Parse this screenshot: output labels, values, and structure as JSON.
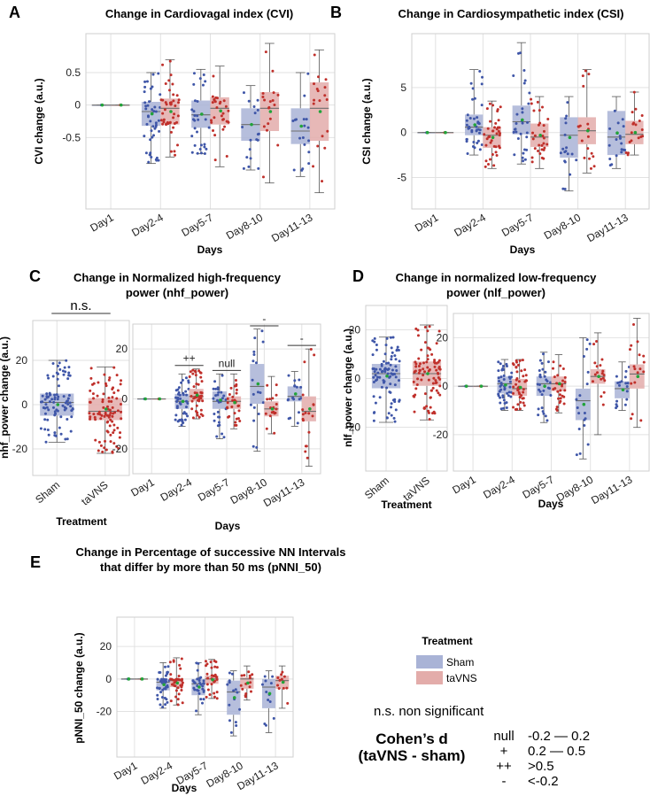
{
  "colors": {
    "sham": "#a9b3d6",
    "tavns": "#e3acaa",
    "sham_dot": "#3f56a8",
    "tavns_dot": "#c0302b",
    "median": "#6d6d6d",
    "mean": "#22a33a"
  },
  "legend": {
    "title": "Treatment",
    "items": [
      "Sham",
      "taVNS"
    ]
  },
  "notes": {
    "ns": "n.s. non significant",
    "cohen_title_1": "Cohen’s d",
    "cohen_title_2": "(taVNS - sham)",
    "rows": [
      {
        "sym": "null",
        "range": "-0.2 — 0.2"
      },
      {
        "sym": "+",
        "range": "0.2 — 0.5"
      },
      {
        "sym": "++",
        "range": ">0.5"
      },
      {
        "sym": "-",
        "range": "<-0.2"
      }
    ]
  },
  "chart_data": [
    {
      "id": "A",
      "letter": "A",
      "type": "box",
      "title_lines": [
        "Change in Cardiovagal index (CVI)"
      ],
      "ylabel": "CVI change (a.u.)",
      "xlabel": "Days",
      "ylim": [
        -1.6,
        1.1
      ],
      "yticks": [
        -0.5,
        0,
        0.5
      ],
      "yticklabels": [
        "-0.5",
        "0",
        "0.5"
      ],
      "categories": [
        "Day1",
        "Day2-4",
        "Day5-7",
        "Day8-10",
        "Day11-13"
      ],
      "series": [
        {
          "name": "Sham",
          "boxes": [
            [
              0,
              0,
              0,
              0,
              0
            ],
            [
              -0.9,
              -0.32,
              -0.1,
              0.05,
              0.5
            ],
            [
              -0.75,
              -0.35,
              -0.15,
              0.07,
              0.55
            ],
            [
              -1.0,
              -0.55,
              -0.3,
              -0.05,
              0.3
            ],
            [
              -1.1,
              -0.6,
              -0.4,
              -0.05,
              0.5
            ]
          ],
          "n": [
            1,
            45,
            30,
            18,
            18
          ]
        },
        {
          "name": "taVNS",
          "boxes": [
            [
              0,
              0,
              0,
              0,
              0
            ],
            [
              -0.8,
              -0.3,
              -0.05,
              0.1,
              0.7
            ],
            [
              -0.95,
              -0.3,
              -0.05,
              0.12,
              0.6
            ],
            [
              -1.2,
              -0.4,
              -0.05,
              0.2,
              0.95
            ],
            [
              -1.35,
              -0.55,
              -0.05,
              0.35,
              0.85
            ]
          ],
          "n": [
            1,
            45,
            30,
            18,
            18
          ]
        }
      ],
      "annotations": []
    },
    {
      "id": "B",
      "letter": "B",
      "type": "box",
      "title_lines": [
        "Change in Cardiosympathetic index (CSI)"
      ],
      "ylabel": "CSI change (a.u.)",
      "xlabel": "Days",
      "ylim": [
        -8.5,
        11
      ],
      "yticks": [
        -5,
        0,
        5
      ],
      "yticklabels": [
        "-5",
        "0",
        "5"
      ],
      "categories": [
        "Day1",
        "Day2-4",
        "Day5-7",
        "Day8-10",
        "Day11-13"
      ],
      "series": [
        {
          "name": "Sham",
          "boxes": [
            [
              0,
              0,
              0,
              0,
              0
            ],
            [
              -2.5,
              -0.3,
              0.6,
              2.0,
              7.0
            ],
            [
              -3.5,
              -0.2,
              1.2,
              3.0,
              10.0
            ],
            [
              -6.5,
              -2.8,
              -0.3,
              1.7,
              4.0
            ],
            [
              -4.0,
              -2.5,
              -0.5,
              2.4,
              4.0
            ]
          ],
          "n": [
            1,
            40,
            30,
            18,
            18
          ]
        },
        {
          "name": "taVNS",
          "boxes": [
            [
              0,
              0,
              0,
              0,
              0
            ],
            [
              -4.0,
              -1.7,
              -0.3,
              0.6,
              3.5
            ],
            [
              -4.0,
              -1.6,
              -0.5,
              1.0,
              4.0
            ],
            [
              -4.5,
              -1.3,
              0.2,
              1.7,
              7.0
            ],
            [
              -2.5,
              -1.3,
              -0.2,
              1.3,
              4.5
            ]
          ],
          "n": [
            1,
            40,
            30,
            18,
            18
          ]
        }
      ],
      "annotations": []
    },
    {
      "id": "C1",
      "letter": "C",
      "type": "box",
      "title_lines": [
        "Change in Normalized high-frequency",
        "power (nhf_power)"
      ],
      "ylabel": "nhf_power change (a.u.)",
      "xlabel": "Treatment",
      "ylim": [
        -32,
        38
      ],
      "yticks": [
        -20,
        0,
        20
      ],
      "yticklabels": [
        "-20",
        "0",
        "20"
      ],
      "categories": [
        "Sham",
        "taVNS"
      ],
      "groups": [
        {
          "name": "Sham",
          "box": [
            -17,
            -5,
            1,
            5,
            20
          ],
          "n": 90
        },
        {
          "name": "taVNS",
          "box": [
            -22,
            -7,
            -3,
            3,
            17
          ],
          "n": 90
        }
      ],
      "annotations": [
        {
          "cat": 0.5,
          "text": "n.s.",
          "big": true
        }
      ]
    },
    {
      "id": "C2",
      "letter": "",
      "type": "box",
      "title_lines": [],
      "ylabel": "",
      "xlabel": "Days",
      "ylim": [
        -30,
        30
      ],
      "yticks": [
        -20,
        0,
        20
      ],
      "yticklabels": [
        "-20",
        "0",
        "20"
      ],
      "categories": [
        "Day1",
        "Day2-4",
        "Day5-7",
        "Day8-10",
        "Day11-13"
      ],
      "series": [
        {
          "name": "Sham",
          "boxes": [
            [
              0,
              0,
              0,
              0,
              0
            ],
            [
              -11,
              -4,
              -1,
              2,
              10
            ],
            [
              -16,
              -4,
              -1,
              3,
              10
            ],
            [
              -21,
              -2,
              5,
              14,
              28
            ],
            [
              -11,
              -1,
              1,
              5,
              11
            ]
          ],
          "n": [
            1,
            45,
            30,
            18,
            18
          ]
        },
        {
          "name": "taVNS",
          "boxes": [
            [
              0,
              0,
              0,
              0,
              0
            ],
            [
              -8,
              -1,
              1,
              4,
              12
            ],
            [
              -12,
              -4,
              -1,
              1,
              10
            ],
            [
              -14,
              -7,
              -4,
              -1,
              9
            ],
            [
              -27,
              -9,
              -5,
              1,
              20
            ]
          ],
          "n": [
            1,
            45,
            30,
            18,
            18
          ]
        }
      ],
      "annotations": [
        {
          "cat": 1,
          "text": "++",
          "big": false
        },
        {
          "cat": 2,
          "text": "null",
          "big": false
        },
        {
          "cat": 3,
          "text": "-",
          "big": false
        },
        {
          "cat": 4,
          "text": "-",
          "big": false
        }
      ]
    },
    {
      "id": "D1",
      "letter": "D",
      "type": "box",
      "title_lines": [
        "Change in normalized low-frequency",
        "power (nlf_power)"
      ],
      "ylabel": "nlf_power change (a.u.)",
      "xlabel": "Treatment",
      "ylim": [
        -38,
        30
      ],
      "yticks": [
        -20,
        0,
        20
      ],
      "yticklabels": [
        "-20",
        "0",
        "20"
      ],
      "categories": [
        "Sham",
        "taVNS"
      ],
      "groups": [
        {
          "name": "Sham",
          "box": [
            -18,
            -4,
            2,
            6,
            17
          ],
          "n": 90
        },
        {
          "name": "taVNS",
          "box": [
            -17,
            -3,
            2,
            7,
            22
          ],
          "n": 90
        }
      ],
      "annotations": []
    },
    {
      "id": "D2",
      "letter": "",
      "type": "box",
      "title_lines": [],
      "ylabel": "",
      "xlabel": "Days",
      "ylim": [
        -35,
        30
      ],
      "yticks": [
        -20,
        0,
        20
      ],
      "yticklabels": [
        "-20",
        "0",
        "20"
      ],
      "categories": [
        "Day1",
        "Day2-4",
        "Day5-7",
        "Day8-10",
        "Day11-13"
      ],
      "series": [
        {
          "name": "Sham",
          "boxes": [
            [
              0,
              0,
              0,
              0,
              0
            ],
            [
              -10,
              -3,
              1,
              4,
              11
            ],
            [
              -15,
              -4,
              1,
              4,
              14
            ],
            [
              -30,
              -14,
              -6,
              -1,
              20
            ],
            [
              -10,
              -5,
              -1,
              2,
              10
            ]
          ],
          "n": [
            1,
            45,
            30,
            18,
            18
          ]
        },
        {
          "name": "taVNS",
          "boxes": [
            [
              0,
              0,
              0,
              0,
              0
            ],
            [
              -10,
              -4,
              -1,
              3,
              11
            ],
            [
              -11,
              -2,
              1,
              4,
              13
            ],
            [
              -20,
              1,
              4,
              7,
              22
            ],
            [
              -17,
              -1,
              5,
              9,
              28
            ]
          ],
          "n": [
            1,
            45,
            30,
            18,
            18
          ]
        }
      ],
      "annotations": []
    },
    {
      "id": "E",
      "letter": "E",
      "type": "box",
      "title_lines": [
        "Change in Percentage of successive NN Intervals",
        "that differ by more than 50 ms (pNNI_50)"
      ],
      "ylabel": "pNNI_50 change (a.u.)",
      "xlabel": "Days",
      "ylim": [
        -48,
        38
      ],
      "yticks": [
        -20,
        0,
        20
      ],
      "yticklabels": [
        "-20",
        "0",
        "20"
      ],
      "categories": [
        "Day1",
        "Day2-4",
        "Day5-7",
        "Day8-10",
        "Day11-13"
      ],
      "series": [
        {
          "name": "Sham",
          "boxes": [
            [
              0,
              0,
              0,
              0,
              0
            ],
            [
              -18,
              -7,
              -2,
              0,
              10
            ],
            [
              -22,
              -10,
              -3,
              0,
              10
            ],
            [
              -35,
              -22,
              -8,
              -1,
              5
            ],
            [
              -33,
              -18,
              -5,
              0,
              5
            ]
          ],
          "n": [
            1,
            40,
            30,
            15,
            12
          ]
        },
        {
          "name": "taVNS",
          "boxes": [
            [
              0,
              0,
              0,
              0,
              0
            ],
            [
              -16,
              -5,
              -1,
              0,
              13
            ],
            [
              -12,
              -3,
              0,
              2,
              12
            ],
            [
              -13,
              -6,
              0,
              1,
              8
            ],
            [
              -18,
              -6,
              -1,
              2,
              8
            ]
          ],
          "n": [
            1,
            40,
            30,
            15,
            12
          ]
        }
      ],
      "annotations": []
    }
  ]
}
